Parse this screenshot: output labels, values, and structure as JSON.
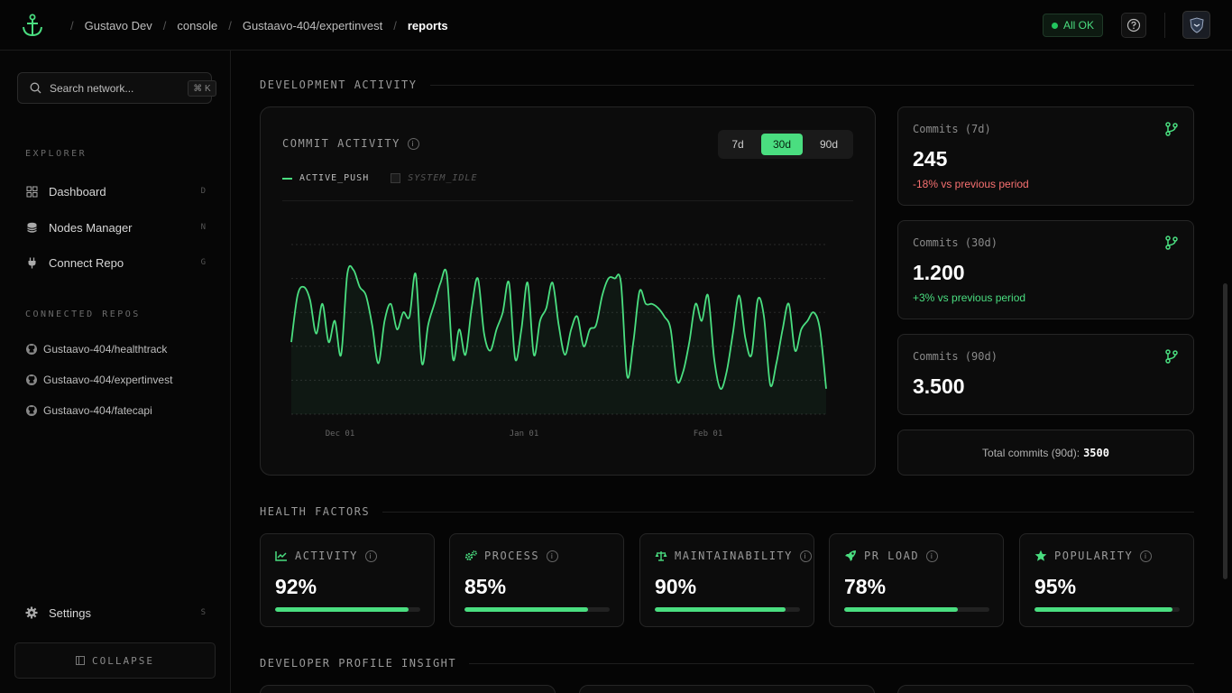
{
  "breadcrumb": [
    "Gustavo Dev",
    "console",
    "Gustaavo-404/expertinvest",
    "reports"
  ],
  "status": {
    "label": "All OK",
    "color": "#22c55e"
  },
  "sidebar": {
    "search": {
      "placeholder": "Search network...",
      "shortcut": "⌘ K"
    },
    "explorer_title": "EXPLORER",
    "nav": [
      {
        "label": "Dashboard",
        "key": "D",
        "icon": "dashboard-icon"
      },
      {
        "label": "Nodes Manager",
        "key": "N",
        "icon": "database-icon"
      },
      {
        "label": "Connect Repo",
        "key": "G",
        "icon": "plug-icon"
      }
    ],
    "repos_title": "CONNECTED REPOS",
    "repos": [
      "Gustaavo-404/healthtrack",
      "Gustaavo-404/expertinvest",
      "Gustaavo-404/fatecapi"
    ],
    "settings": {
      "label": "Settings",
      "key": "S"
    },
    "collapse_label": "COLLAPSE"
  },
  "main": {
    "dev_activity_title": "DEVELOPMENT ACTIVITY",
    "commit_chart": {
      "title": "COMMIT ACTIVITY",
      "ranges": [
        "7d",
        "30d",
        "90d"
      ],
      "active_range": "30d",
      "legend": [
        "ACTIVE_PUSH",
        "SYSTEM_IDLE"
      ]
    },
    "stats": [
      {
        "label": "Commits (7d)",
        "value": "245",
        "change": "-18% vs previous period",
        "trend": "down"
      },
      {
        "label": "Commits (30d)",
        "value": "1.200",
        "change": "+3% vs previous period",
        "trend": "up"
      },
      {
        "label": "Commits (90d)",
        "value": "3.500",
        "change": "",
        "trend": ""
      }
    ],
    "total": {
      "label": "Total commits (90d):",
      "value": "3500"
    },
    "health_title": "HEALTH FACTORS",
    "health": [
      {
        "label": "ACTIVITY",
        "value": "92%",
        "level": 0.92,
        "icon": "chart-line-icon"
      },
      {
        "label": "PROCESS",
        "value": "85%",
        "level": 0.85,
        "icon": "gears-icon"
      },
      {
        "label": "MAINTAINABILITY",
        "value": "90%",
        "level": 0.9,
        "icon": "scale-icon"
      },
      {
        "label": "PR LOAD",
        "value": "78%",
        "level": 0.78,
        "icon": "rocket-icon"
      },
      {
        "label": "POPULARITY",
        "value": "95%",
        "level": 0.95,
        "icon": "star-icon"
      }
    ],
    "profile_title": "DEVELOPER PROFILE INSIGHT"
  },
  "accent": "#4ade80",
  "chart_data": {
    "type": "area",
    "x_ticks": [
      "Dec 01",
      "Jan 01",
      "Feb 01"
    ],
    "series": [
      {
        "name": "ACTIVE_PUSH",
        "values": [
          8.5,
          14,
          15,
          13.5,
          9.5,
          13,
          8.5,
          11,
          7,
          16.5,
          17,
          15,
          14,
          10.5,
          6,
          11,
          13,
          10,
          12,
          11.5,
          16.5,
          6,
          10.5,
          13,
          15.5,
          16.5,
          6.5,
          10,
          7,
          12.5,
          16,
          9.5,
          7.5,
          10,
          12,
          15.5,
          6.5,
          10,
          15.5,
          7,
          11,
          12.5,
          15.5,
          10.5,
          7,
          10,
          11.5,
          8,
          10,
          10.5,
          14,
          16,
          16,
          15.5,
          4.5,
          8.5,
          14.5,
          13,
          13,
          12.5,
          11.5,
          10,
          4,
          5,
          8.5,
          13,
          11,
          14,
          6.5,
          3,
          5,
          9.5,
          14,
          9,
          7,
          13.5,
          11.5,
          3.5,
          6,
          10,
          13,
          7.5,
          10,
          11,
          12,
          10,
          3
        ]
      }
    ]
  }
}
